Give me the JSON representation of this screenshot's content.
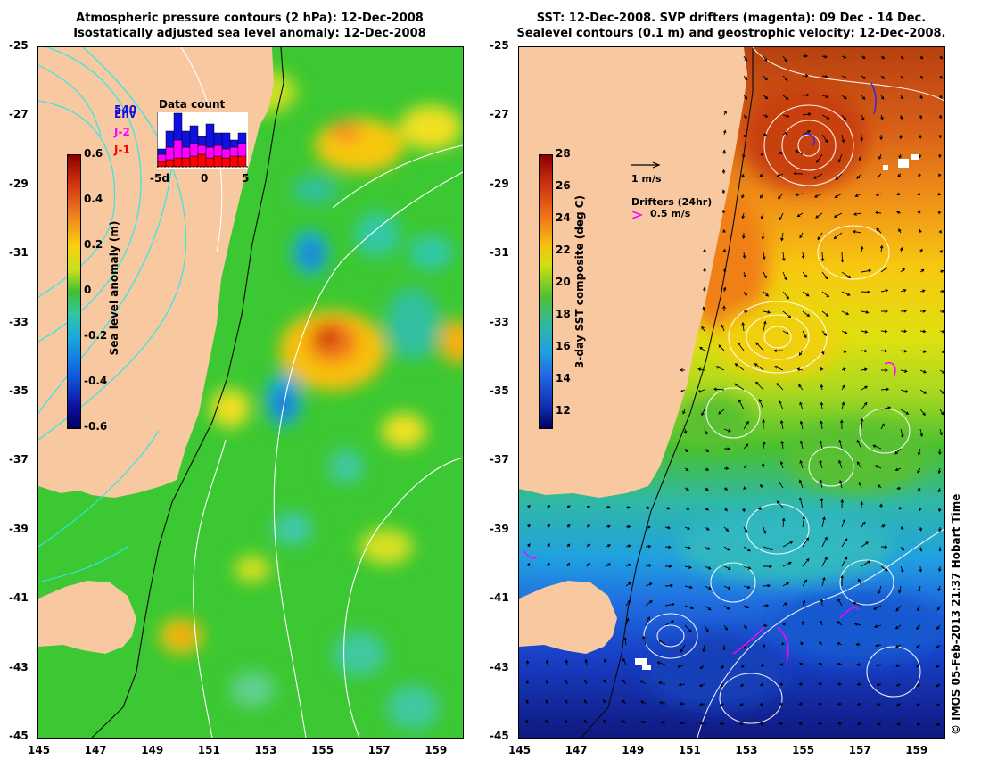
{
  "left_panel": {
    "title_line1": "Atmospheric pressure contours (2 hPa): 12-Dec-2008",
    "title_line2": "Isostatically adjusted sea level anomaly: 12-Dec-2008",
    "lat_ticks": [
      "-25",
      "-27",
      "-29",
      "-31",
      "-33",
      "-35",
      "-37",
      "-39",
      "-41",
      "-43",
      "-45"
    ],
    "lon_ticks": [
      "145",
      "147",
      "149",
      "151",
      "153",
      "155",
      "157",
      "159"
    ],
    "colorbar": {
      "label": "Sea level anomaly (m)",
      "ticks": [
        "0.6",
        "0.4",
        "0.2",
        "0",
        "-0.2",
        "-0.4",
        "-0.6"
      ],
      "range": [
        -0.6,
        0.6
      ]
    },
    "data_count": {
      "title": "Data count",
      "legend": [
        "Env",
        "J-2",
        "J-1"
      ],
      "legend_colors": [
        "#1010e0",
        "#ff00ff",
        "#ff0000"
      ],
      "number_label": "540",
      "x_ticks": [
        "-5d",
        "0",
        "5"
      ]
    }
  },
  "right_panel": {
    "title_line1": "SST: 12-Dec-2008. SVP drifters (magenta): 09 Dec - 14 Dec.",
    "title_line2": "Sealevel contours (0.1 m) and geostrophic velocity: 12-Dec-2008.",
    "lat_ticks": [
      "-25",
      "-27",
      "-29",
      "-31",
      "-33",
      "-35",
      "-37",
      "-39",
      "-41",
      "-43",
      "-45"
    ],
    "lon_ticks": [
      "145",
      "147",
      "149",
      "151",
      "153",
      "155",
      "157",
      "159"
    ],
    "colorbar": {
      "label": "3-day SST composite (deg C)",
      "ticks": [
        "28",
        "26",
        "24",
        "22",
        "20",
        "18",
        "16",
        "14",
        "12"
      ],
      "range": [
        11,
        28
      ]
    },
    "velocity_scale": "1 m/s",
    "drifters_label": "Drifters (24hr)",
    "drifters_speed": "0.5 m/s"
  },
  "copyright": "© IMOS 05-Feb-2013 21:37 Hobart Time",
  "colors": {
    "land": "#f8c8a0",
    "drifter": "#ff00ff"
  }
}
